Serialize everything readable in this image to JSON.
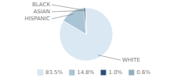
{
  "chart_data": {
    "type": "pie",
    "categories": [
      "WHITE",
      "HISPANIC",
      "ASIAN",
      "BLACK"
    ],
    "values": [
      83.5,
      14.8,
      1.0,
      0.6
    ],
    "value_labels": [
      "83.5%",
      "14.8%",
      "1.0%",
      "0.6%"
    ],
    "colors": [
      "#d9e8f2",
      "#a8c4d5",
      "#2b4f7a",
      "#8fafc0"
    ],
    "legend": "bottom"
  }
}
